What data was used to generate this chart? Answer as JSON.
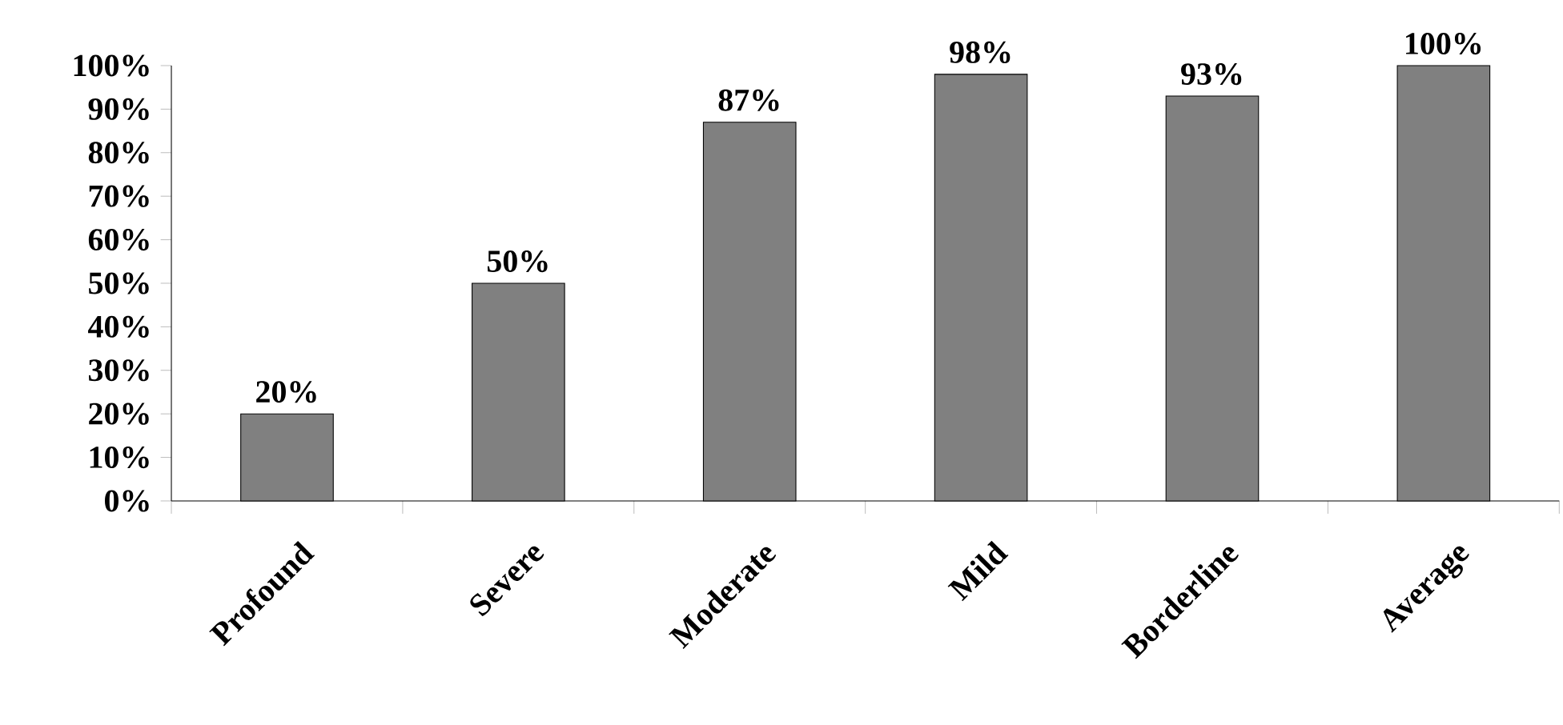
{
  "chart_data": {
    "type": "bar",
    "categories": [
      "Profound",
      "Severe",
      "Moderate",
      "Mild",
      "Borderline",
      "Average"
    ],
    "values": [
      20,
      50,
      87,
      98,
      93,
      100
    ],
    "value_labels": [
      "20%",
      "50%",
      "87%",
      "98%",
      "93%",
      "100%"
    ],
    "color": "#808080",
    "ylim": [
      0,
      100
    ],
    "yticks": [
      {
        "value": 0,
        "label": "0%"
      },
      {
        "value": 10,
        "label": "10%"
      },
      {
        "value": 20,
        "label": "20%"
      },
      {
        "value": 30,
        "label": "30%"
      },
      {
        "value": 40,
        "label": "40%"
      },
      {
        "value": 50,
        "label": "50%"
      },
      {
        "value": 60,
        "label": "60%"
      },
      {
        "value": 70,
        "label": "70%"
      },
      {
        "value": 80,
        "label": "80%"
      },
      {
        "value": 90,
        "label": "90%"
      },
      {
        "value": 100,
        "label": "100%"
      }
    ],
    "grid": false
  }
}
